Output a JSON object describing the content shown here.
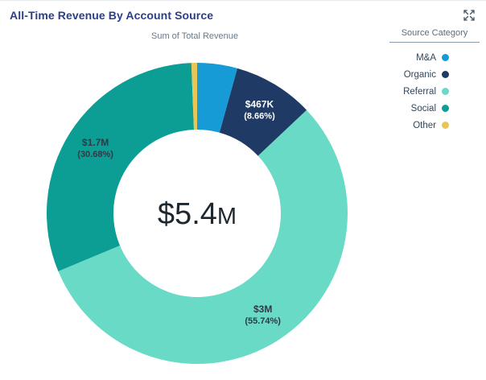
{
  "header": {
    "title": "All-Time Revenue By Account Source"
  },
  "chart_data": {
    "type": "pie",
    "subtype": "donut",
    "title": "Sum of Total Revenue",
    "center_value": "$5.4",
    "center_unit": "M",
    "total_label": "$5.4M",
    "legend_title": "Source Category",
    "legend_position": "right",
    "slices": [
      {
        "name": "M&A",
        "color": "#169bd7",
        "pct": 4.31,
        "value_label": "",
        "pct_label": ""
      },
      {
        "name": "Organic",
        "color": "#1f3a64",
        "pct": 8.66,
        "value": 467000,
        "value_label": "$467K",
        "pct_label": "(8.66%)",
        "label_color": "#ffffff"
      },
      {
        "name": "Referral",
        "color": "#68dac6",
        "pct": 55.74,
        "value": 3000000,
        "value_label": "$3M",
        "pct_label": "(55.74%)",
        "label_color": "#2e3a45"
      },
      {
        "name": "Social",
        "color": "#0c9e94",
        "pct": 30.68,
        "value": 1700000,
        "value_label": "$1.7M",
        "pct_label": "(30.68%)",
        "label_color": "#2e3a45"
      },
      {
        "name": "Other",
        "color": "#e6c755",
        "pct": 0.61,
        "value_label": "",
        "pct_label": ""
      }
    ]
  }
}
